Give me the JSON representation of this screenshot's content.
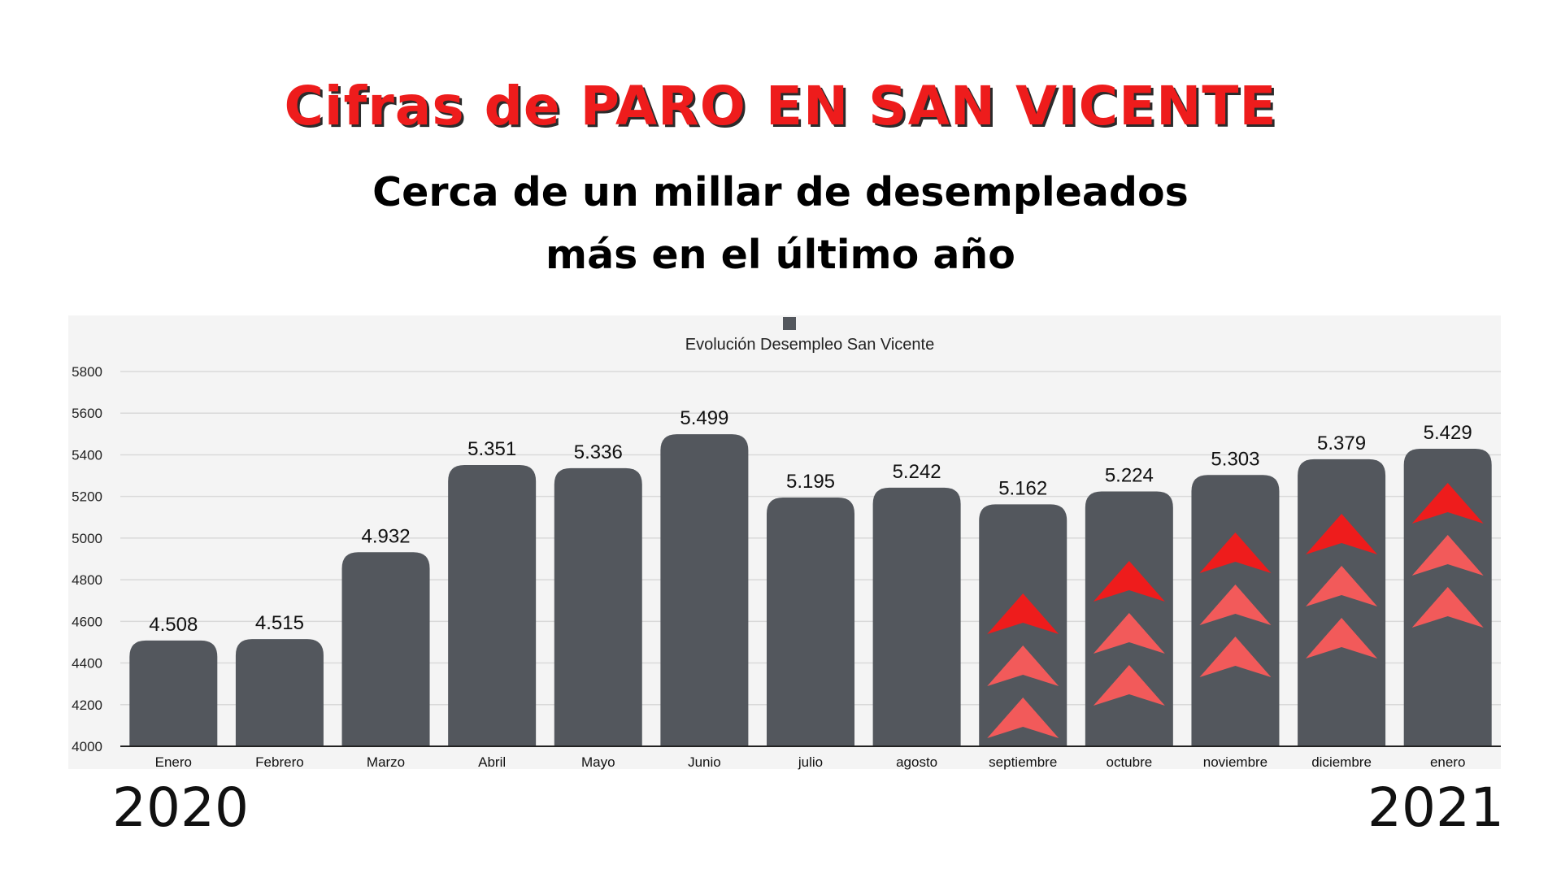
{
  "headline": "Cifras de PARO EN SAN VICENTE",
  "subheadline_line1": "Cerca de un millar de desempleados",
  "subheadline_line2": "más en el último año",
  "year_start": "2020",
  "year_end": "2021",
  "colors": {
    "headline": "#ee1c1c",
    "bar": "#53575d",
    "arrow_dark": "#ee1c1c",
    "arrow_light": "#f25a5a",
    "plot_background": "#f4f4f4"
  },
  "chart_data": {
    "type": "bar",
    "title": "Evolución Desempleo San Vicente",
    "legend_position": "top",
    "grid": true,
    "categories": [
      "Enero",
      "Febrero",
      "Marzo",
      "Abril",
      "Mayo",
      "Junio",
      "julio",
      "agosto",
      "septiembre",
      "octubre",
      "noviembre",
      "diciembre",
      "enero"
    ],
    "values": [
      4508,
      4515,
      4932,
      5351,
      5336,
      5499,
      5195,
      5242,
      5162,
      5224,
      5303,
      5379,
      5429
    ],
    "data_labels": [
      "4.508",
      "4.515",
      "4.932",
      "5.351",
      "5.336",
      "5.499",
      "5.195",
      "5.242",
      "5.162",
      "5.224",
      "5.303",
      "5.379",
      "5.429"
    ],
    "y_ticks": [
      4000,
      4200,
      4400,
      4600,
      4800,
      5000,
      5200,
      5400,
      5600,
      5800
    ],
    "ylim": [
      4000,
      5800
    ],
    "annotations": [
      {
        "category": "septiembre",
        "marker": "up-arrow-icon",
        "count": 3
      },
      {
        "category": "octubre",
        "marker": "up-arrow-icon",
        "count": 3
      },
      {
        "category": "noviembre",
        "marker": "up-arrow-icon",
        "count": 3
      },
      {
        "category": "diciembre",
        "marker": "up-arrow-icon",
        "count": 3
      },
      {
        "category": "enero",
        "marker": "up-arrow-icon",
        "count": 3
      }
    ]
  }
}
